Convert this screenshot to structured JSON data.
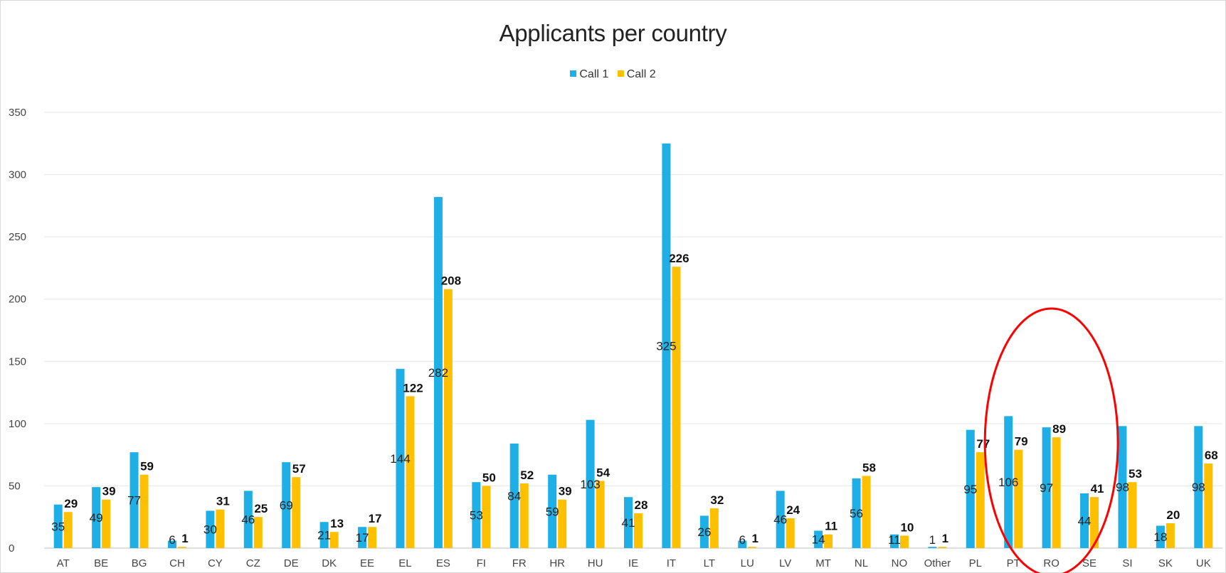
{
  "chart_data": {
    "type": "bar",
    "title": "Applicants per country",
    "xlabel": "",
    "ylabel": "",
    "ylim": [
      0,
      350
    ],
    "yticks": [
      0,
      50,
      100,
      150,
      200,
      250,
      300,
      350
    ],
    "grid": true,
    "legend_position": "top",
    "categories": [
      "AT",
      "BE",
      "BG",
      "CH",
      "CY",
      "CZ",
      "DE",
      "DK",
      "EE",
      "EL",
      "ES",
      "FI",
      "FR",
      "HR",
      "HU",
      "IE",
      "IT",
      "LT",
      "LU",
      "LV",
      "MT",
      "NL",
      "NO",
      "Other",
      "PL",
      "PT",
      "RO",
      "SE",
      "SI",
      "SK",
      "UK"
    ],
    "series": [
      {
        "name": "Call 1",
        "color": "#1EAFE6",
        "values": [
          35,
          49,
          77,
          6,
          30,
          46,
          69,
          21,
          17,
          144,
          282,
          53,
          84,
          59,
          103,
          41,
          325,
          26,
          6,
          46,
          14,
          56,
          11,
          1,
          95,
          106,
          97,
          44,
          98,
          18,
          98
        ]
      },
      {
        "name": "Call 2",
        "color": "#FFC000",
        "values": [
          29,
          39,
          59,
          1,
          31,
          25,
          57,
          13,
          17,
          122,
          208,
          50,
          52,
          39,
          54,
          28,
          226,
          32,
          1,
          24,
          11,
          58,
          10,
          1,
          77,
          79,
          89,
          41,
          53,
          20,
          68
        ]
      }
    ],
    "annotations": [
      {
        "type": "ellipse",
        "color": "#FF0000",
        "around": [
          "PT",
          "RO",
          "SE"
        ]
      }
    ]
  }
}
